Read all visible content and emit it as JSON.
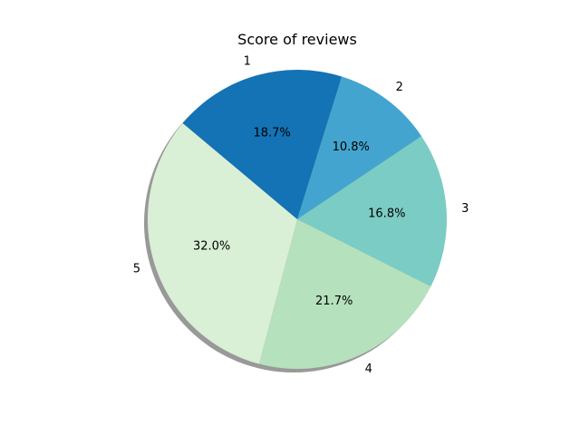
{
  "chart_data": {
    "type": "pie",
    "title": "Score of reviews",
    "categories": [
      "1",
      "2",
      "3",
      "4",
      "5"
    ],
    "values": [
      18.7,
      10.8,
      16.8,
      21.7,
      32.0
    ],
    "percent_labels": [
      "18.7%",
      "10.8%",
      "16.8%",
      "21.7%",
      "32.0%"
    ],
    "colors": [
      "#1373b4",
      "#43a5cf",
      "#7bccc4",
      "#b5e1bd",
      "#daf0d6"
    ],
    "shadow": true,
    "start_angle": 140,
    "direction": "clockwise"
  }
}
